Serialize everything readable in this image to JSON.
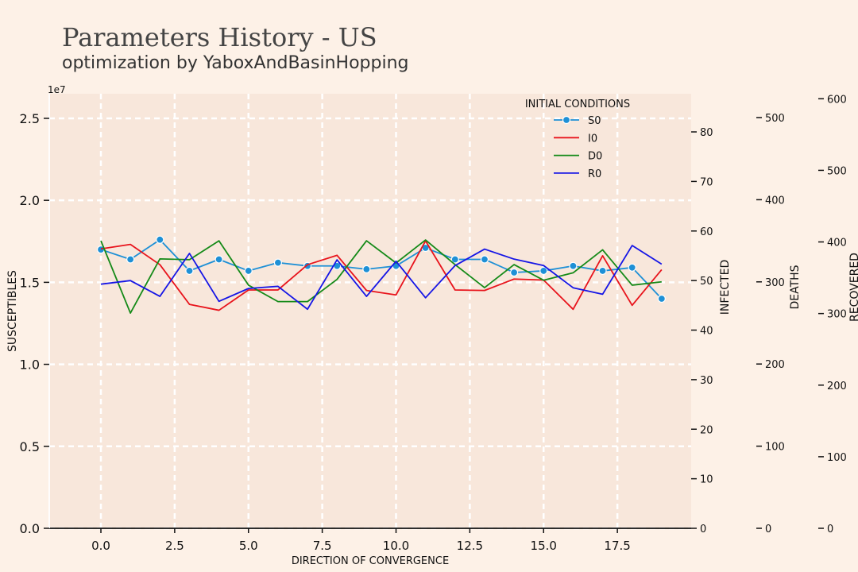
{
  "title": "Parameters History - US",
  "subtitle": "optimization by YaboxAndBasinHopping",
  "chart_data": {
    "type": "line",
    "x": [
      0,
      1,
      2,
      3,
      4,
      5,
      6,
      7,
      8,
      9,
      10,
      11,
      12,
      13,
      14,
      15,
      16,
      17,
      18,
      19
    ],
    "xlabel": "DIRECTION OF CONVERGENCE",
    "xlim": [
      -1.75,
      20.0
    ],
    "xticks": [
      0.0,
      2.5,
      5.0,
      7.5,
      10.0,
      12.5,
      15.0,
      17.5
    ],
    "xtick_labels": [
      "0.0",
      "2.5",
      "5.0",
      "7.5",
      "10.0",
      "12.5",
      "15.0",
      "17.5"
    ],
    "grid": true,
    "legend": {
      "title": "INITIAL CONDITIONS",
      "placement": "top-right"
    },
    "axes": [
      {
        "id": "S",
        "label": "SUSCEPTIBLES",
        "side": "left",
        "offset_text": "1e7",
        "ylim": [
          0,
          2.65
        ],
        "ticks": [
          0.0,
          0.5,
          1.0,
          1.5,
          2.0,
          2.5
        ],
        "tick_labels": [
          "0.0",
          "0.5",
          "1.0",
          "1.5",
          "2.0",
          "2.5"
        ]
      },
      {
        "id": "I",
        "label": "INFECTED",
        "side": "right",
        "ylim": [
          0,
          87.7
        ],
        "ticks": [
          0,
          10,
          20,
          30,
          40,
          50,
          60,
          70,
          80
        ],
        "tick_labels": [
          "0",
          "10",
          "20",
          "30",
          "40",
          "50",
          "60",
          "70",
          "80"
        ]
      },
      {
        "id": "D",
        "label": "DEATHS",
        "side": "right",
        "ylim": [
          0,
          529
        ],
        "ticks": [
          0,
          100,
          200,
          300,
          400,
          500
        ],
        "tick_labels": [
          "0",
          "100",
          "200",
          "300",
          "400",
          "500"
        ]
      },
      {
        "id": "R",
        "label": "RECOVERED",
        "side": "right",
        "ylim": [
          0,
          607
        ],
        "ticks": [
          0,
          100,
          200,
          300,
          400,
          500,
          600
        ],
        "tick_labels": [
          "0",
          "100",
          "200",
          "300",
          "400",
          "500",
          "600"
        ]
      }
    ],
    "series": [
      {
        "name": "S0",
        "axis": "S",
        "color": "#1e90d6",
        "marker": true,
        "values": [
          1.7,
          1.64,
          1.76,
          1.57,
          1.64,
          1.57,
          1.62,
          1.6,
          1.6,
          1.58,
          1.6,
          1.71,
          1.64,
          1.64,
          1.56,
          1.57,
          1.6,
          1.57,
          1.59,
          1.4
        ]
      },
      {
        "name": "I0",
        "axis": "I",
        "color": "#e8141c",
        "marker": false,
        "values": [
          56.4,
          57.3,
          53.2,
          45.2,
          44.0,
          48.1,
          48.1,
          53.2,
          55.1,
          48.0,
          47.1,
          58.0,
          48.1,
          48.0,
          50.3,
          50.1,
          44.2,
          55.0,
          45.0,
          52.2
        ]
      },
      {
        "name": "D0",
        "axis": "D",
        "color": "#158a18",
        "marker": false,
        "values": [
          350,
          262,
          328,
          327,
          350,
          296,
          276,
          276,
          303,
          350,
          323,
          351,
          321,
          293,
          321,
          302,
          311,
          339,
          296,
          300
        ]
      },
      {
        "name": "R0",
        "axis": "R",
        "color": "#1515e6",
        "marker": false,
        "values": [
          341,
          346,
          324,
          384,
          317,
          335,
          338,
          306,
          375,
          324,
          373,
          322,
          367,
          390,
          376,
          367,
          336,
          327,
          395,
          369
        ]
      }
    ]
  }
}
